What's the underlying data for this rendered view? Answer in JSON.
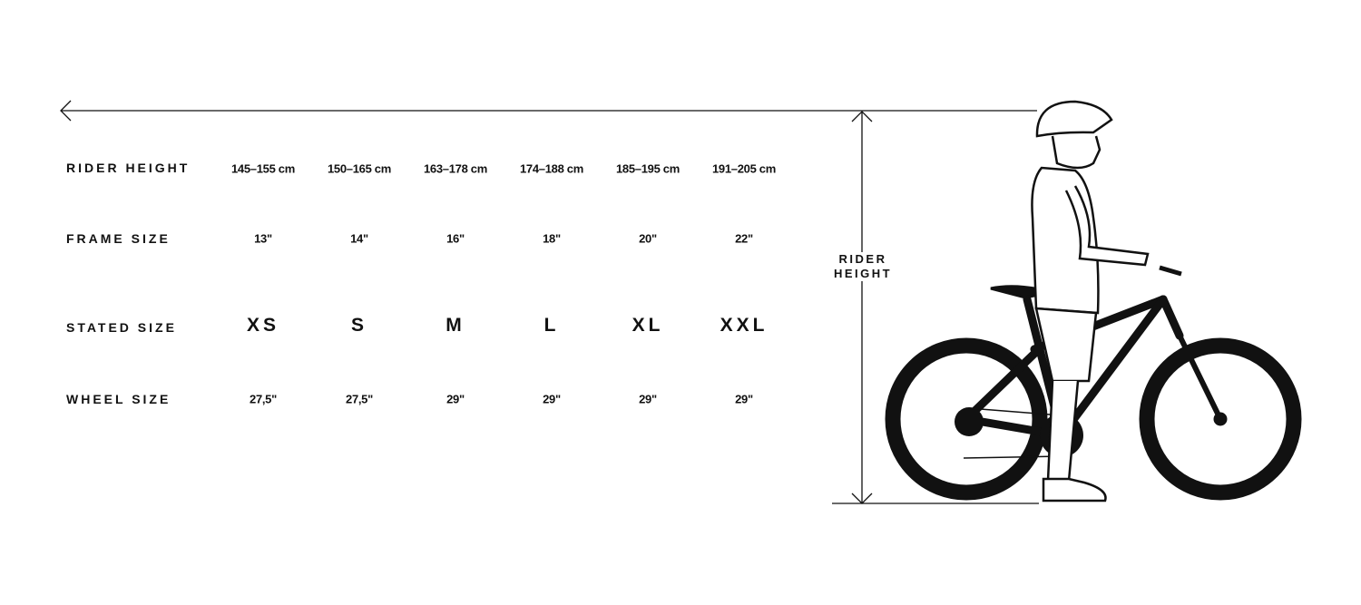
{
  "rows": [
    {
      "label": "RIDER HEIGHT",
      "values": [
        "145–155 cm",
        "150–165 cm",
        "163–178 cm",
        "174–188 cm",
        "185–195 cm",
        "191–205 cm"
      ]
    },
    {
      "label": "FRAME SIZE",
      "values": [
        "13\"",
        "14\"",
        "16\"",
        "18\"",
        "20\"",
        "22\""
      ]
    },
    {
      "label": "STATED SIZE",
      "values": [
        "XS",
        "S",
        "M",
        "L",
        "XL",
        "XXL"
      ]
    },
    {
      "label": "WHEEL SIZE",
      "values": [
        "27,5\"",
        "27,5\"",
        "29\"",
        "29\"",
        "29\"",
        "29\""
      ]
    }
  ],
  "illustration": {
    "measure_label_line1": "RIDER",
    "measure_label_line2": "HEIGHT",
    "icon": "rider-with-bike-illustration"
  },
  "colors": {
    "ink": "#111111",
    "background": "#ffffff"
  }
}
